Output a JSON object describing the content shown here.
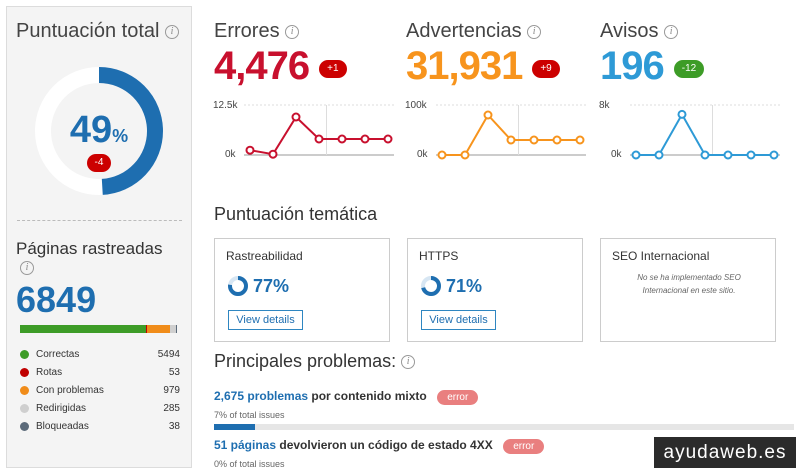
{
  "score": {
    "title": "Puntuación total",
    "value": "49",
    "unit": "%",
    "change": "-4",
    "fraction": 0.49
  },
  "crawled": {
    "title": "Páginas rastreadas",
    "value": "6849",
    "legend": [
      {
        "label": "Correctas",
        "value": "5494",
        "color": "#3d9c27"
      },
      {
        "label": "Rotas",
        "value": "53",
        "color": "#c00000"
      },
      {
        "label": "Con problemas",
        "value": "979",
        "color": "#f08c1a"
      },
      {
        "label": "Redirigidas",
        "value": "285",
        "color": "#cfcfcf"
      },
      {
        "label": "Bloqueadas",
        "value": "38",
        "color": "#5c6b7a"
      }
    ]
  },
  "metrics": [
    {
      "title": "Errores",
      "value": "4,476",
      "change": "+1",
      "color": "#c8102e",
      "ymax": "12.5k",
      "ymin": "0k"
    },
    {
      "title": "Advertencias",
      "value": "31,931",
      "change": "+9",
      "color": "#f7941d",
      "ymax": "100k",
      "ymin": "0k"
    },
    {
      "title": "Avisos",
      "value": "196",
      "change": "-12",
      "color": "#2e9ad6",
      "ymax": "8k",
      "ymin": "0k"
    }
  ],
  "chart_data": [
    {
      "type": "line",
      "title": "Errores",
      "ylim": [
        0,
        12500
      ],
      "values": [
        1200,
        200,
        9500,
        4000,
        4000,
        4000,
        4000
      ]
    },
    {
      "type": "line",
      "title": "Advertencias",
      "ylim": [
        0,
        100000
      ],
      "values": [
        0,
        0,
        80000,
        30000,
        30000,
        30000,
        30000
      ]
    },
    {
      "type": "line",
      "title": "Avisos",
      "ylim": [
        0,
        8000
      ],
      "values": [
        0,
        0,
        6500,
        0,
        0,
        0,
        0
      ]
    }
  ],
  "thematic": {
    "title": "Puntuación temática",
    "cards": [
      {
        "title": "Rastreabilidad",
        "pct": "77%",
        "fraction": 0.77,
        "button": "View details"
      },
      {
        "title": "HTTPS",
        "pct": "71%",
        "fraction": 0.71,
        "button": "View details"
      },
      {
        "title": "SEO Internacional",
        "message": "No se ha implementado SEO Internacional en este sitio."
      }
    ]
  },
  "issues": {
    "title": "Principales problemas:",
    "items": [
      {
        "link": "2,675 problemas",
        "text": " por contenido mixto",
        "badge": "error",
        "sub": "7% of total issues",
        "fraction": 0.07
      },
      {
        "link": "51 páginas",
        "text": " devolvieron un código de estado 4XX",
        "badge": "error",
        "sub": "0% of total issues",
        "fraction": 0.0
      }
    ]
  },
  "watermark": "ayudaweb.es"
}
